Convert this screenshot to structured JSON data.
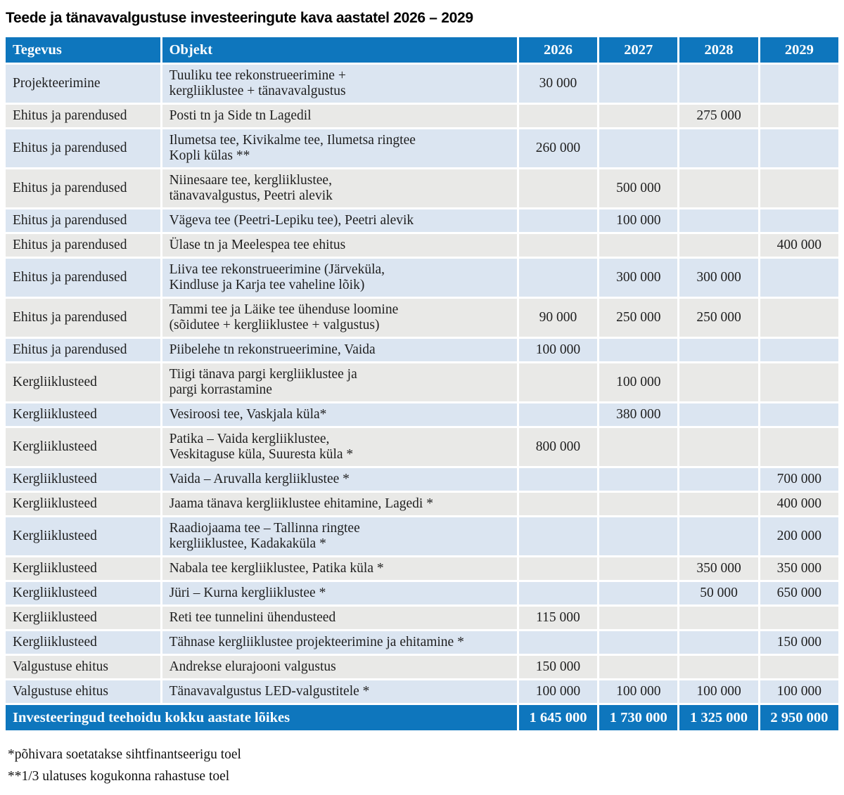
{
  "page": {
    "title": "Teede ja tänavavalgustuse investeeringute kava aastatel 2026 – 2029"
  },
  "colors": {
    "header_blue": "#0e76bd",
    "row_blue": "#dbe5f1",
    "row_gray": "#e9e9e7",
    "header_text": "#ffffff",
    "body_text": "#1f1f1f"
  },
  "table": {
    "columns": {
      "tegevus": "Tegevus",
      "objekt": "Objekt"
    },
    "years": [
      "2026",
      "2027",
      "2028",
      "2029"
    ],
    "rows": [
      {
        "tegevus": "Projekteerimine",
        "objekt": "Tuuliku tee rekonstrueerimine +\nkergliiklustee + tänavavalgustus",
        "values": [
          "30 000",
          "",
          "",
          ""
        ]
      },
      {
        "tegevus": "Ehitus ja parendused",
        "objekt": "Posti tn ja Side tn Lagedil",
        "values": [
          "",
          "",
          "275 000",
          ""
        ]
      },
      {
        "tegevus": "Ehitus ja parendused",
        "objekt": "Ilumetsa tee, Kivikalme tee, Ilumetsa ringtee\nKopli külas **",
        "values": [
          "260 000",
          "",
          "",
          ""
        ]
      },
      {
        "tegevus": "Ehitus ja parendused",
        "objekt": "Niinesaare tee, kergliiklustee,\ntänavavalgustus, Peetri alevik",
        "values": [
          "",
          "500 000",
          "",
          ""
        ]
      },
      {
        "tegevus": "Ehitus ja parendused",
        "objekt": "Vägeva tee (Peetri-Lepiku tee), Peetri alevik",
        "values": [
          "",
          "100 000",
          "",
          ""
        ]
      },
      {
        "tegevus": "Ehitus ja parendused",
        "objekt": "Ülase tn ja Meelespea tee ehitus",
        "values": [
          "",
          "",
          "",
          "400 000"
        ]
      },
      {
        "tegevus": "Ehitus ja parendused",
        "objekt": "Liiva tee rekonstrueerimine (Järveküla,\nKindluse ja Karja tee vaheline lõik)",
        "values": [
          "",
          "300 000",
          "300 000",
          ""
        ]
      },
      {
        "tegevus": "Ehitus ja parendused",
        "objekt": "Tammi tee ja Läike tee ühenduse loomine\n(sõidutee + kergliiklustee + valgustus)",
        "values": [
          "90 000",
          "250 000",
          "250 000",
          ""
        ]
      },
      {
        "tegevus": "Ehitus ja parendused",
        "objekt": "Piibelehe tn rekonstrueerimine, Vaida",
        "values": [
          "100 000",
          "",
          "",
          ""
        ]
      },
      {
        "tegevus": "Kergliiklusteed",
        "objekt": "Tiigi tänava pargi kergliiklustee ja\npargi korrastamine",
        "values": [
          "",
          "100 000",
          "",
          ""
        ]
      },
      {
        "tegevus": "Kergliiklusteed",
        "objekt": "Vesiroosi tee, Vaskjala küla*",
        "values": [
          "",
          "380 000",
          "",
          ""
        ]
      },
      {
        "tegevus": "Kergliiklusteed",
        "objekt": "Patika – Vaida kergliiklustee,\nVeskitaguse küla, Suuresta küla *",
        "values": [
          "800 000",
          "",
          "",
          ""
        ]
      },
      {
        "tegevus": "Kergliiklusteed",
        "objekt": "Vaida – Aruvalla kergliiklustee *",
        "values": [
          "",
          "",
          "",
          "700 000"
        ]
      },
      {
        "tegevus": "Kergliiklusteed",
        "objekt": "Jaama tänava kergliiklustee ehitamine, Lagedi *",
        "values": [
          "",
          "",
          "",
          "400 000"
        ]
      },
      {
        "tegevus": "Kergliiklusteed",
        "objekt": "Raadiojaama tee – Tallinna ringtee\nkergliiklustee, Kadakaküla *",
        "values": [
          "",
          "",
          "",
          "200 000"
        ]
      },
      {
        "tegevus": "Kergliiklusteed",
        "objekt": "Nabala tee kergliiklustee, Patika küla *",
        "values": [
          "",
          "",
          "350 000",
          "350 000"
        ]
      },
      {
        "tegevus": "Kergliiklusteed",
        "objekt": "Jüri – Kurna kergliiklustee *",
        "values": [
          "",
          "",
          "50 000",
          "650 000"
        ]
      },
      {
        "tegevus": "Kergliiklusteed",
        "objekt": "Reti tee tunnelini ühendusteed",
        "values": [
          "115 000",
          "",
          "",
          ""
        ]
      },
      {
        "tegevus": "Kergliiklusteed",
        "objekt": "Tähnase kergliiklustee projekteerimine ja ehitamine *",
        "values": [
          "",
          "",
          "",
          "150 000"
        ]
      },
      {
        "tegevus": "Valgustuse ehitus",
        "objekt": "Andrekse elurajooni valgustus",
        "values": [
          "150 000",
          "",
          "",
          ""
        ]
      },
      {
        "tegevus": "Valgustuse ehitus",
        "objekt": "Tänavavalgustus LED-valgustitele *",
        "values": [
          "100 000",
          "100 000",
          "100 000",
          "100 000"
        ]
      }
    ],
    "total_row": {
      "label": "Investeeringud teehoidu kokku aastate lõikes",
      "values": [
        "1 645 000",
        "1 730 000",
        "1 325 000",
        "2 950 000"
      ]
    }
  },
  "footnotes": [
    "*põhivara soetatakse sihtfinantseerigu toel",
    "**1/3 ulatuses kogukonna rahastuse toel"
  ]
}
